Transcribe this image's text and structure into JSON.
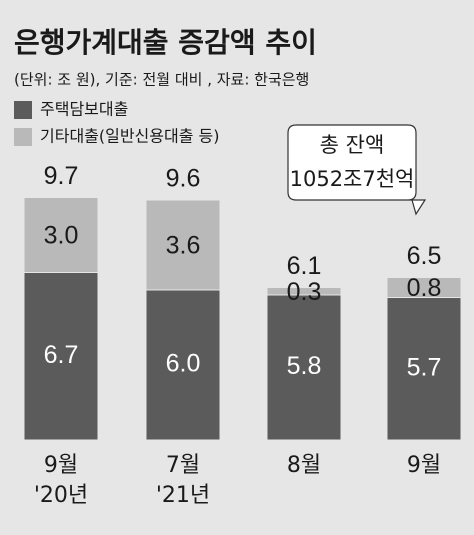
{
  "chart_data": {
    "type": "stacked_bar",
    "title": "은행가계대출 증감액 추이",
    "subtitle": "(단위: 조 원), 기준: 전월 대비 , 자료: 한국은행",
    "categories": [
      [
        "9월",
        "'20년"
      ],
      [
        "7월",
        "'21년"
      ],
      [
        "8월"
      ],
      [
        "9월"
      ]
    ],
    "series": [
      {
        "name": "주택담보대출",
        "color": "#5b5b5b",
        "values": [
          6.7,
          6.0,
          5.8,
          5.7
        ],
        "value_labels": [
          "6.7",
          "6.0",
          "5.8",
          "5.7"
        ]
      },
      {
        "name": "기타대출(일반신용대출 등)",
        "color": "#b9b9b9",
        "values": [
          3.0,
          3.6,
          0.3,
          0.8
        ],
        "value_labels": [
          "3.0",
          "3.6",
          "0.3",
          "0.8"
        ]
      }
    ],
    "totals": [
      9.7,
      9.6,
      6.1,
      6.5
    ],
    "annotation": [
      "총 잔액",
      "1052조7천억"
    ]
  }
}
